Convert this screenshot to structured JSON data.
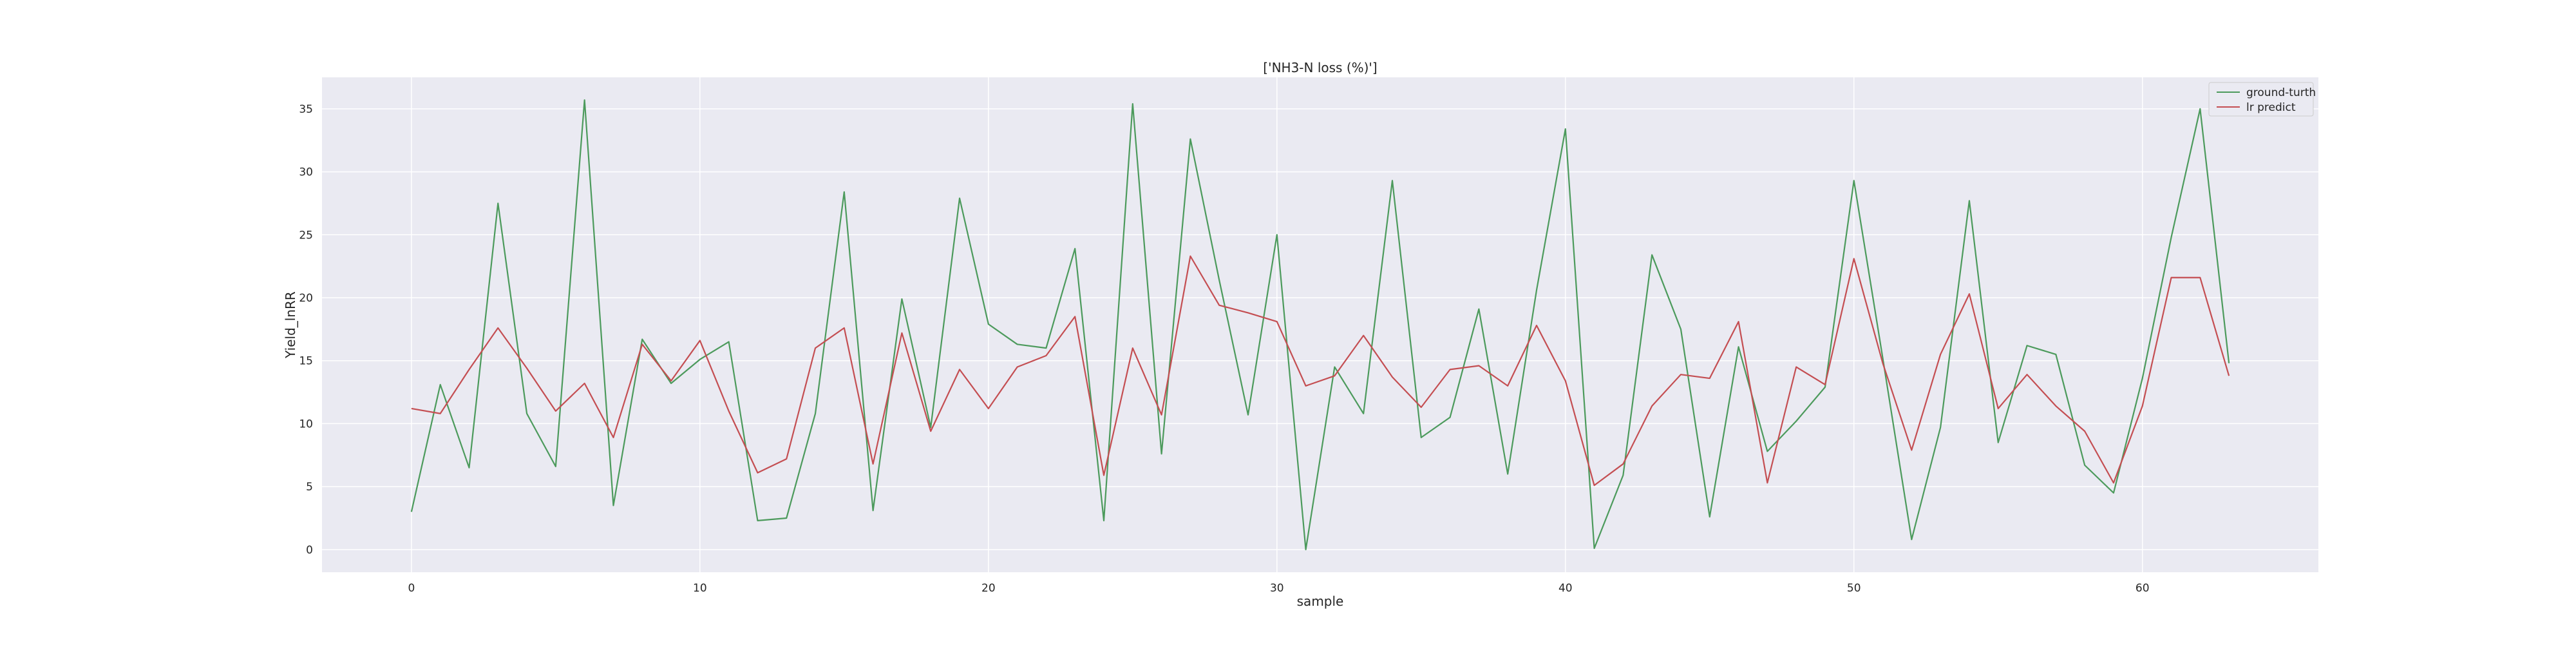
{
  "chart_data": {
    "type": "line",
    "title": "['NH3-N loss (%)']",
    "xlabel": "sample",
    "ylabel": "Yield_lnRR",
    "xlim": [
      -3.1,
      66.1
    ],
    "ylim": [
      -1.8,
      37.5
    ],
    "xticks": [
      0,
      10,
      20,
      30,
      40,
      50,
      60
    ],
    "yticks": [
      0,
      5,
      10,
      15,
      20,
      25,
      30,
      35
    ],
    "grid": true,
    "legend_position": "top-right",
    "x": [
      0,
      1,
      2,
      3,
      4,
      5,
      6,
      7,
      8,
      9,
      10,
      11,
      12,
      13,
      14,
      15,
      16,
      17,
      18,
      19,
      20,
      21,
      22,
      23,
      24,
      25,
      26,
      27,
      28,
      29,
      30,
      31,
      32,
      33,
      34,
      35,
      36,
      37,
      38,
      39,
      40,
      41,
      42,
      43,
      44,
      45,
      46,
      47,
      48,
      49,
      50,
      51,
      52,
      53,
      54,
      55,
      56,
      57,
      58,
      59,
      60,
      61,
      62,
      63
    ],
    "series": [
      {
        "name": "ground-turth",
        "color": "#4c9a5c",
        "values": [
          3.0,
          13.1,
          6.5,
          27.5,
          10.8,
          6.6,
          35.7,
          3.5,
          16.7,
          13.2,
          15.1,
          16.5,
          2.3,
          2.5,
          10.8,
          28.4,
          3.1,
          19.9,
          9.7,
          27.9,
          17.9,
          16.3,
          16.0,
          23.9,
          2.3,
          35.4,
          7.6,
          32.6,
          21.4,
          10.7,
          25.0,
          0.0,
          14.5,
          10.8,
          29.3,
          8.9,
          10.5,
          19.1,
          6.0,
          20.6,
          33.4,
          0.1,
          5.9,
          23.4,
          17.5,
          2.6,
          16.1,
          7.8,
          10.2,
          12.9,
          29.3,
          15.2,
          0.8,
          9.7,
          27.7,
          8.5,
          16.2,
          15.5,
          6.7,
          4.5,
          13.6,
          24.8,
          35.0,
          14.8
        ]
      },
      {
        "name": "lr predict",
        "color": "#c44e52",
        "values": [
          11.2,
          10.8,
          14.3,
          17.6,
          14.4,
          11.0,
          13.2,
          8.9,
          16.3,
          13.4,
          16.6,
          11.0,
          6.1,
          7.2,
          16.0,
          17.6,
          6.8,
          17.2,
          9.4,
          14.3,
          11.2,
          14.5,
          15.4,
          18.5,
          5.9,
          16.0,
          10.7,
          23.3,
          19.4,
          18.8,
          18.1,
          13.0,
          13.8,
          17.0,
          13.7,
          11.3,
          14.3,
          14.6,
          13.0,
          17.8,
          13.4,
          5.1,
          6.8,
          11.4,
          13.9,
          13.6,
          18.1,
          5.3,
          14.5,
          13.1,
          23.1,
          14.8,
          7.9,
          15.5,
          20.3,
          11.2,
          13.9,
          11.4,
          9.4,
          5.3,
          11.4,
          21.6,
          21.6,
          13.8
        ]
      }
    ]
  }
}
